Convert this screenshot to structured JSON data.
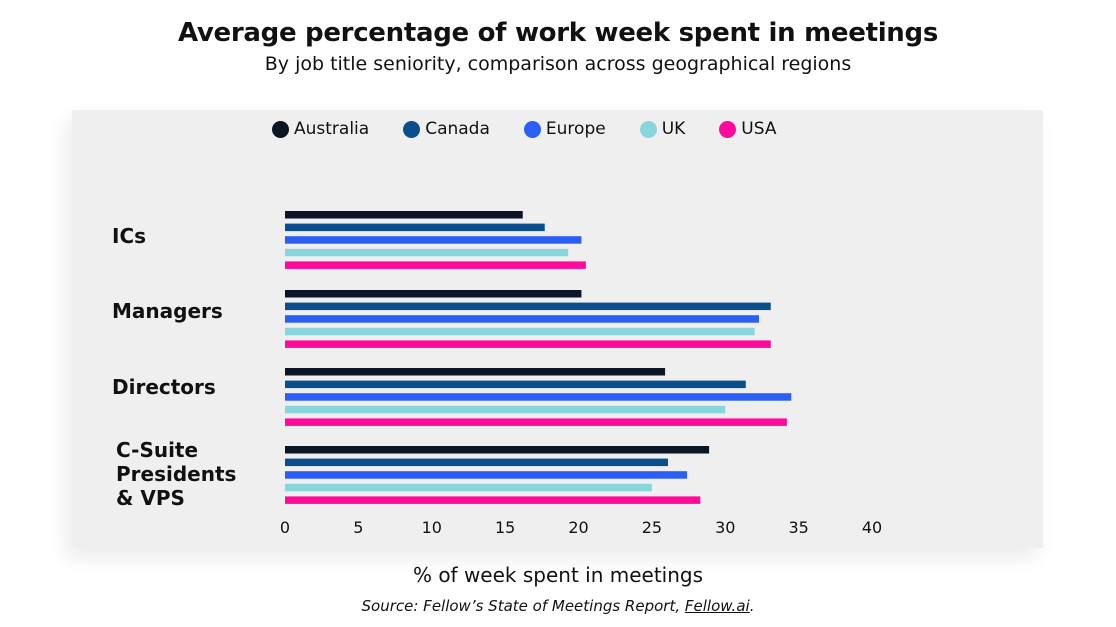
{
  "chart_data": {
    "type": "bar",
    "orientation": "horizontal",
    "title": "Average percentage of work week spent in meetings",
    "subtitle": "By job title seniority, comparison across geographical regions",
    "xlabel": "% of week spent in meetings",
    "source_prefix": "Source: Fellow’s State of Meetings Report, ",
    "source_link": "Fellow.ai",
    "source_suffix": ".",
    "categories": [
      "ICs",
      "Managers",
      "Directors",
      "C-Suite Presidents & VPS"
    ],
    "category_lines": [
      [
        "ICs"
      ],
      [
        "Managers"
      ],
      [
        "Directors"
      ],
      [
        "C-Suite",
        "Presidents",
        "& VPS"
      ]
    ],
    "xlim": [
      0,
      40
    ],
    "xticks": [
      "0",
      "5",
      "10",
      "15",
      "20",
      "25",
      "30",
      "35",
      "40"
    ],
    "grid": false,
    "legend_position": "top",
    "series": [
      {
        "name": "Australia",
        "color": "#0b1526",
        "values": [
          16.2,
          20.2,
          25.9,
          28.9
        ]
      },
      {
        "name": "Canada",
        "color": "#0a4f8c",
        "values": [
          17.7,
          33.1,
          31.4,
          26.1
        ]
      },
      {
        "name": "Europe",
        "color": "#2a5ef5",
        "values": [
          20.2,
          32.3,
          34.5,
          27.4
        ]
      },
      {
        "name": "UK",
        "color": "#88d6dc",
        "values": [
          19.3,
          32.0,
          30.0,
          25.0
        ]
      },
      {
        "name": "USA",
        "color": "#ff0a9b",
        "values": [
          20.5,
          33.1,
          34.2,
          28.3
        ]
      }
    ]
  }
}
